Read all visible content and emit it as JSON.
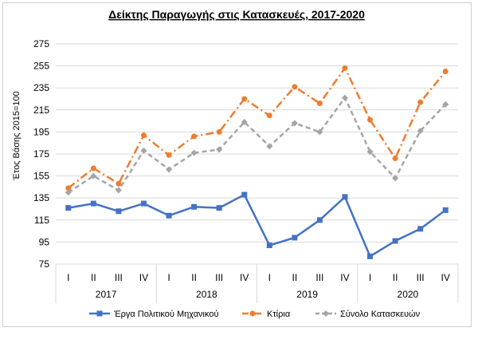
{
  "chart_data": {
    "type": "line",
    "title": "Δείκτης Παραγωγής στις Κατασκευές, 2017-2020",
    "ylabel": "Έτος Βάσης 2015=100",
    "xlabel": "",
    "ylim": [
      75,
      275
    ],
    "yticks": [
      75,
      95,
      115,
      135,
      155,
      175,
      195,
      215,
      235,
      255,
      275
    ],
    "grid": true,
    "legend": "bottom",
    "categories": [
      "I",
      "II",
      "III",
      "IV",
      "I",
      "II",
      "III",
      "IV",
      "I",
      "II",
      "III",
      "IV",
      "I",
      "II",
      "III",
      "IV"
    ],
    "years": [
      "2017",
      "2018",
      "2019",
      "2020"
    ],
    "series": [
      {
        "name": "Έργα Πολιτικού Μηχανικού",
        "color": "#4472c4",
        "style": "solid",
        "marker": "square",
        "values": [
          126,
          130,
          123,
          130,
          119,
          127,
          126,
          138,
          92,
          99,
          115,
          136,
          82,
          96,
          107,
          124
        ]
      },
      {
        "name": "Κτίρια",
        "color": "#ed7d31",
        "style": "dashdot",
        "marker": "circle",
        "values": [
          144,
          162,
          148,
          192,
          174,
          191,
          195,
          225,
          210,
          236,
          221,
          253,
          206,
          171,
          222,
          250
        ]
      },
      {
        "name": "Σύνολο Κατασκευών",
        "color": "#a5a5a5",
        "style": "dashed",
        "marker": "diamond",
        "values": [
          140,
          155,
          142,
          178,
          161,
          176,
          179,
          204,
          182,
          203,
          195,
          226,
          177,
          153,
          196,
          220
        ]
      }
    ]
  }
}
